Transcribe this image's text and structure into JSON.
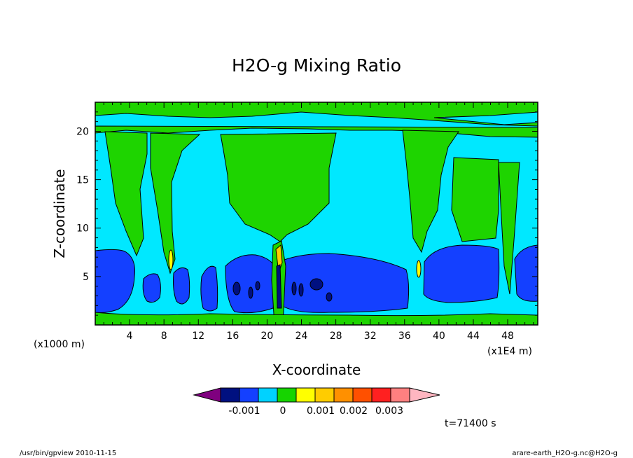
{
  "chart_data": {
    "type": "contour",
    "title": "H2O-g Mixing Ratio",
    "xlabel": "X-coordinate",
    "ylabel": "Z-coordinate",
    "x_unit_label": "(x1E4 m)",
    "y_unit_label": "(x1000 m)",
    "x_ticks": [
      "4",
      "8",
      "12",
      "16",
      "20",
      "24",
      "28",
      "32",
      "36",
      "40",
      "44",
      "48"
    ],
    "y_ticks": [
      "5",
      "10",
      "15",
      "20"
    ],
    "xlim": [
      0,
      51.5
    ],
    "ylim": [
      0,
      23
    ],
    "colorbar": {
      "colors": [
        "#7f007f",
        "#001080",
        "#1440ff",
        "#00d2ff",
        "#16d400",
        "#ffff00",
        "#ffcc00",
        "#ff9000",
        "#ff5000",
        "#ff2020",
        "#ff8080",
        "#ffb6c1"
      ],
      "labels": [
        "-0.001",
        "0",
        "0.001",
        "0.002",
        "0.003"
      ]
    },
    "time_label": "t=71400 s"
  },
  "footer": {
    "left": "/usr/bin/gpview   2010-11-15",
    "right": "arare-earth_H2O-g.nc@H2O-g"
  }
}
